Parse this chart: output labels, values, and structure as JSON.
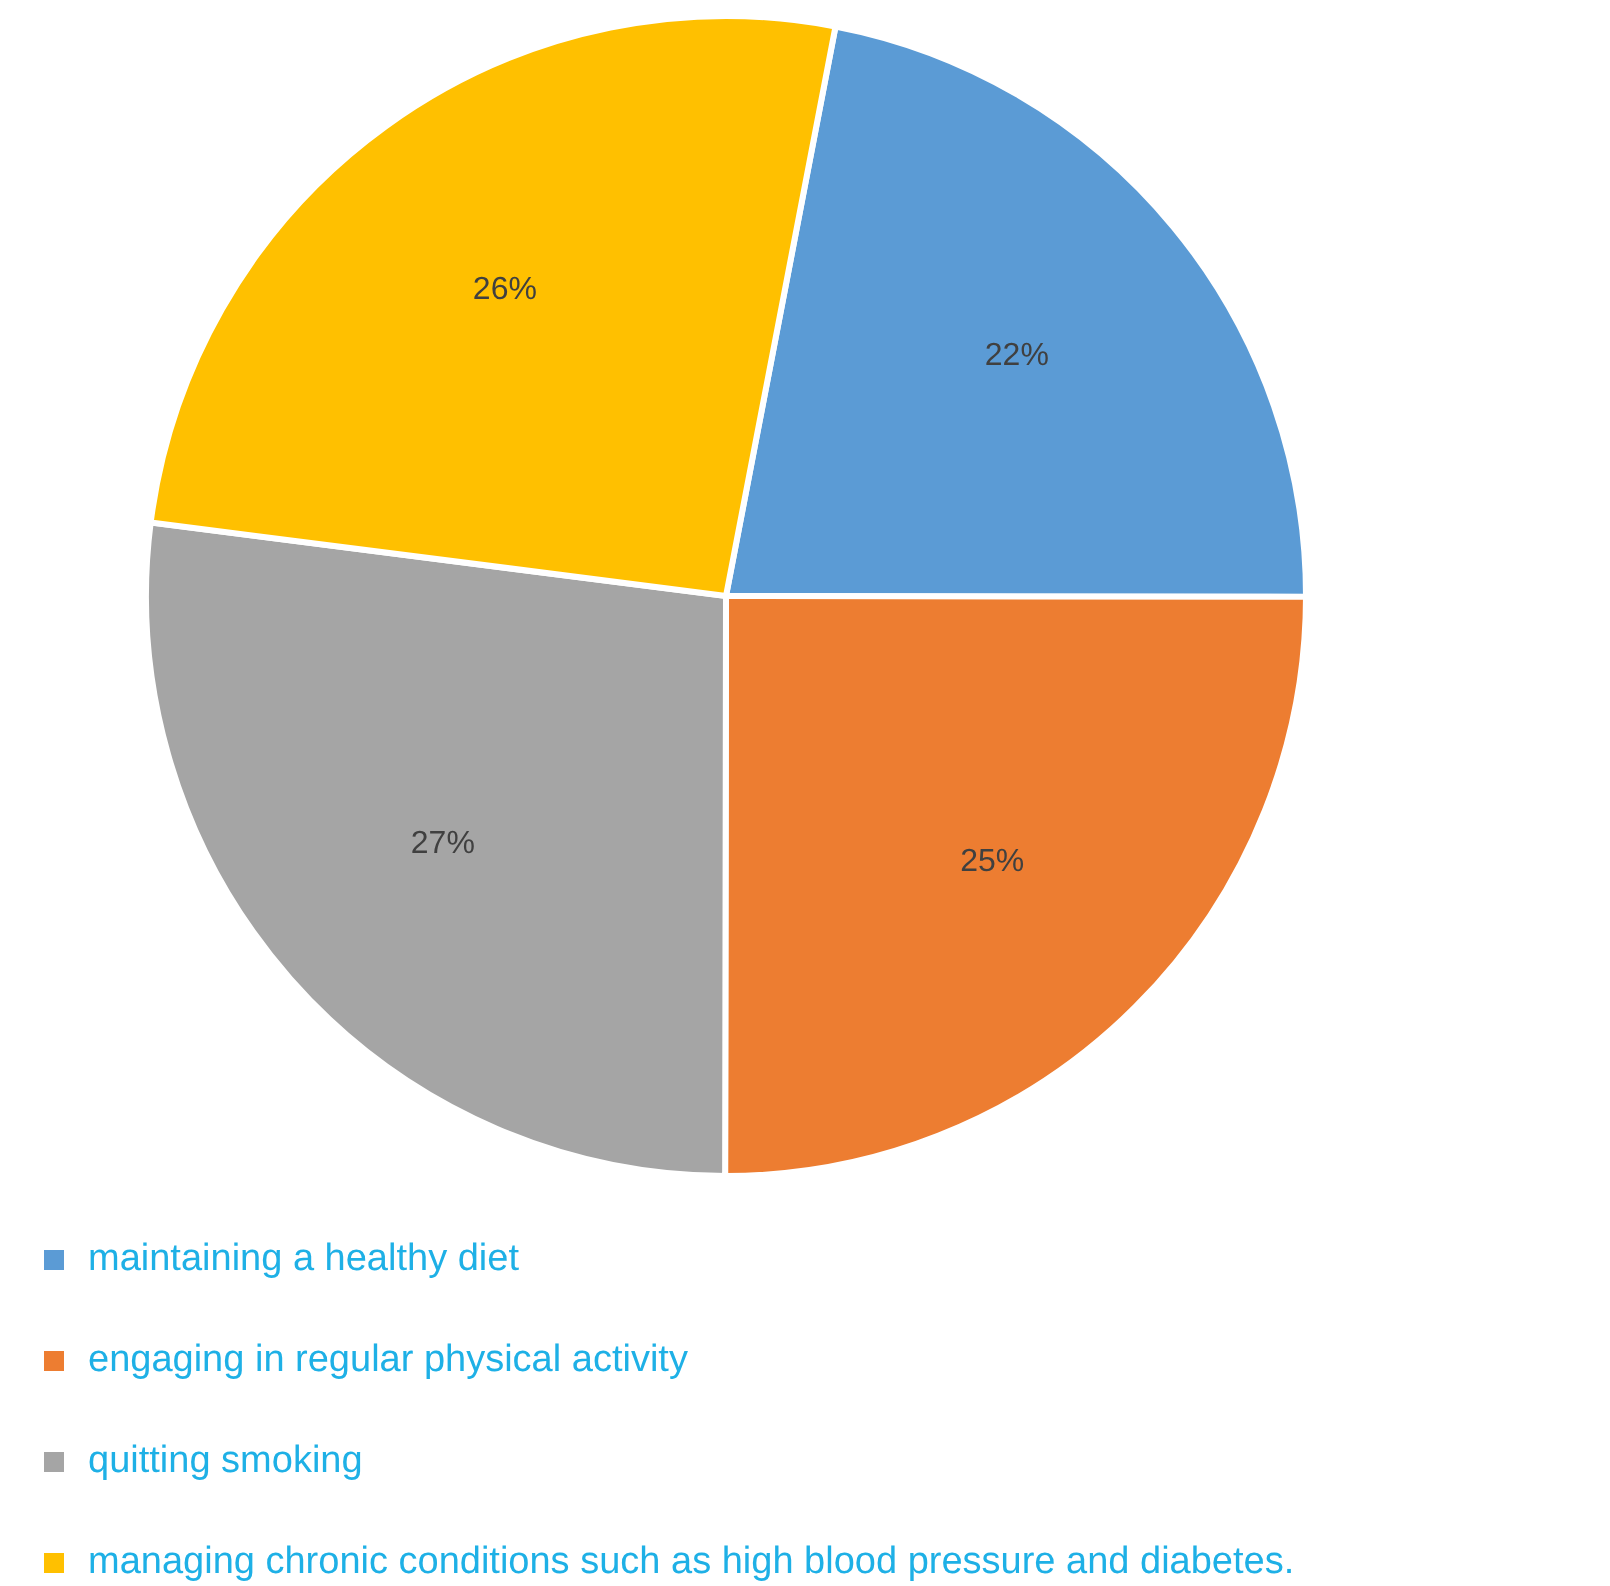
{
  "chart_data": {
    "type": "pie",
    "categories": [
      "maintaining a healthy diet",
      "engaging in regular physical activity",
      "quitting smoking",
      "managing chronic conditions such as high blood pressure and diabetes."
    ],
    "values": [
      22,
      25,
      27,
      26
    ],
    "colors": [
      "#5b9bd5",
      "#ed7d31",
      "#a5a5a5",
      "#ffc000"
    ],
    "value_labels": [
      "22%",
      "25%",
      "27%",
      "26%"
    ],
    "legend": "bottom"
  }
}
